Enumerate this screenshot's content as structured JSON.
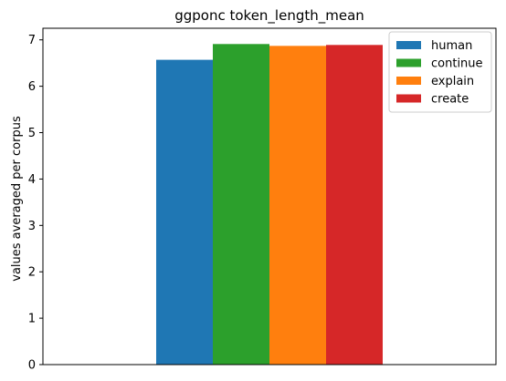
{
  "chart_data": {
    "type": "bar",
    "title": "ggponc token_length_mean",
    "xlabel": "",
    "ylabel": "values averaged per corpus",
    "ylim": [
      0,
      7.25
    ],
    "yticks": [
      0,
      1,
      2,
      3,
      4,
      5,
      6,
      7
    ],
    "grid": false,
    "legend_position": "top-right",
    "categories": [
      "ggponc"
    ],
    "series": [
      {
        "name": "human",
        "values": [
          6.57
        ],
        "color": "#1f77b4"
      },
      {
        "name": "continue",
        "values": [
          6.91
        ],
        "color": "#2ca02c"
      },
      {
        "name": "explain",
        "values": [
          6.87
        ],
        "color": "#ff7f0e"
      },
      {
        "name": "create",
        "values": [
          6.89
        ],
        "color": "#d62728"
      }
    ]
  }
}
